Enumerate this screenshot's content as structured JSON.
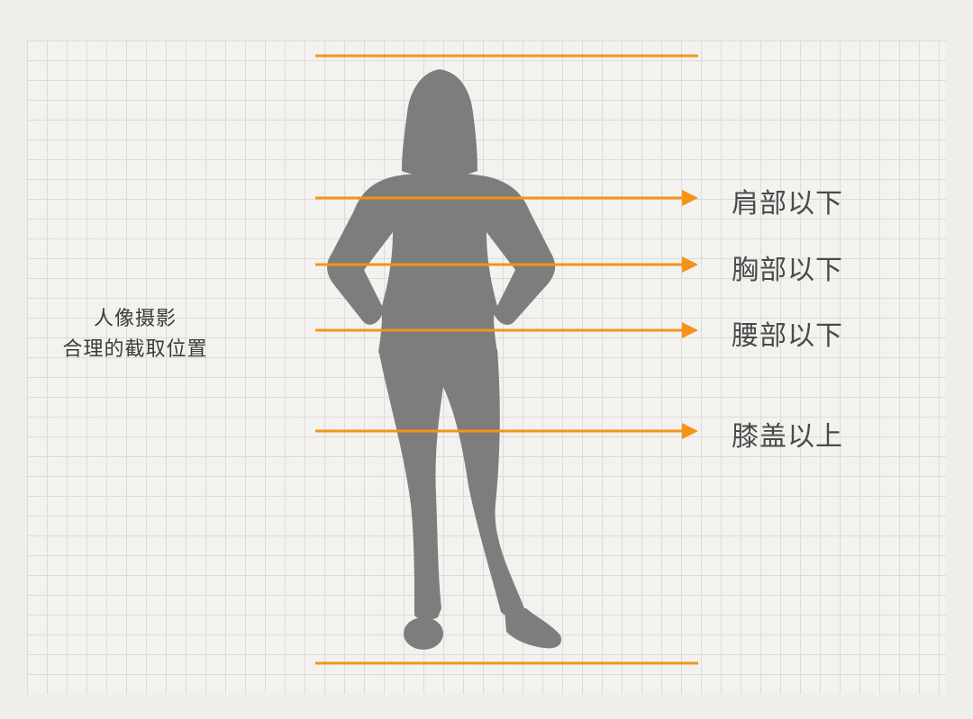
{
  "caption": {
    "line1": "人像摄影",
    "line2": "合理的截取位置"
  },
  "levels": [
    {
      "label": "肩部以下"
    },
    {
      "label": "胸部以下"
    },
    {
      "label": "腰部以下"
    },
    {
      "label": "膝盖以上"
    }
  ],
  "colors": {
    "accent": "#f39419",
    "silhouette": "#7d7d7d",
    "grid": "#dcdbd8"
  }
}
